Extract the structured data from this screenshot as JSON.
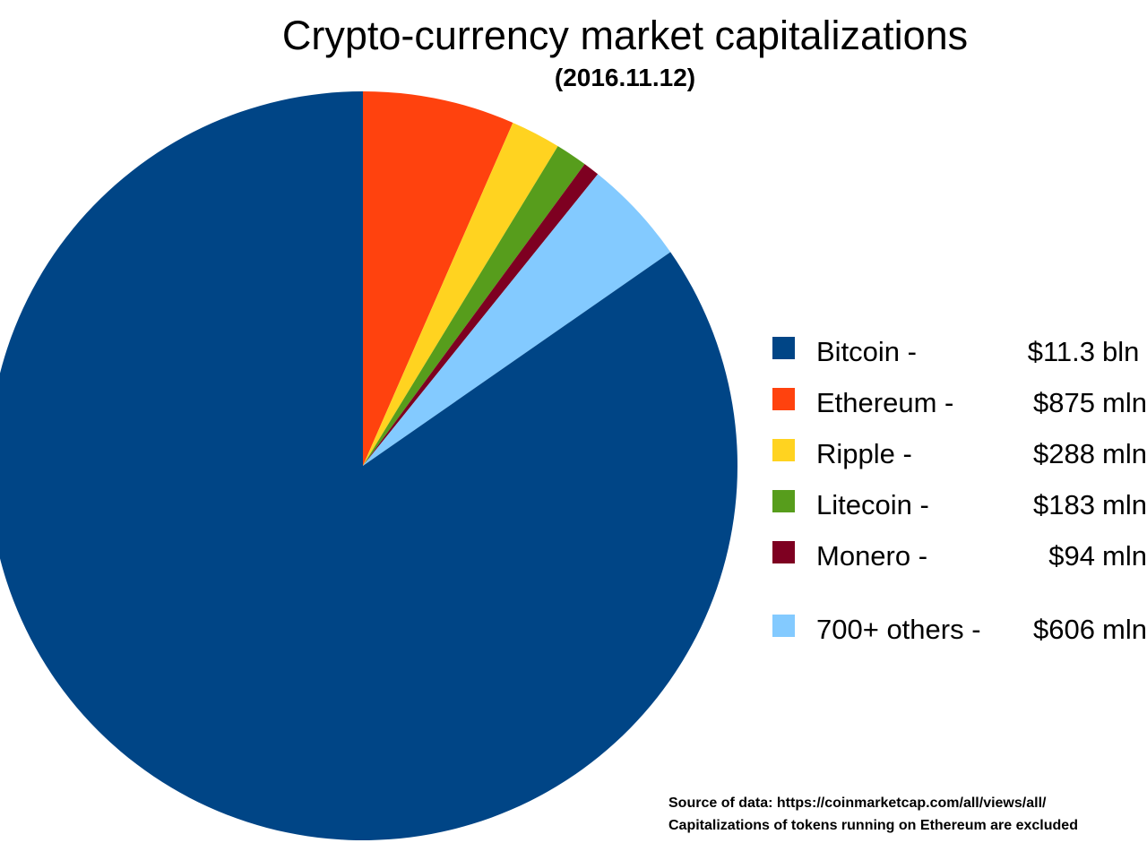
{
  "title": "Crypto-currency market capitalizations",
  "subtitle": "(2016.11.12)",
  "legend": {
    "items": [
      {
        "label": "Bitcoin -",
        "value": "$11.3",
        "unit": "bln",
        "color": "#004586"
      },
      {
        "label": "Ethereum -",
        "value": "$875",
        "unit": "mln",
        "color": "#FF420E"
      },
      {
        "label": "Ripple -",
        "value": "$288",
        "unit": "mln",
        "color": "#FFD320"
      },
      {
        "label": "Litecoin -",
        "value": "$183",
        "unit": "mln",
        "color": "#579D1C"
      },
      {
        "label": "Monero -",
        "value": "$94",
        "unit": "mln",
        "color": "#7E0021"
      },
      {
        "label": "700+ others -",
        "value": "$606",
        "unit": "mln",
        "color": "#83CAFF"
      }
    ]
  },
  "source": {
    "line1": "Source of data: https://coinmarketcap.com/all/views/all/",
    "line2": "Capitalizations of tokens running on Ethereum are excluded"
  },
  "chart_data": {
    "type": "pie",
    "title": "Crypto-currency market capitalizations",
    "subtitle": "(2016.11.12)",
    "slices": [
      {
        "name": "Bitcoin",
        "value_mln": 11300,
        "display": "$11.3 bln",
        "color": "#004586"
      },
      {
        "name": "Ethereum",
        "value_mln": 875,
        "display": "$875 mln",
        "color": "#FF420E"
      },
      {
        "name": "Ripple",
        "value_mln": 288,
        "display": "$288 mln",
        "color": "#FFD320"
      },
      {
        "name": "Litecoin",
        "value_mln": 183,
        "display": "$183 mln",
        "color": "#579D1C"
      },
      {
        "name": "Monero",
        "value_mln": 94,
        "display": "$94 mln",
        "color": "#7E0021"
      },
      {
        "name": "700+ others",
        "value_mln": 606,
        "display": "$606 mln",
        "color": "#83CAFF"
      }
    ],
    "total_mln": 13346,
    "start_angle_deg": 0,
    "direction": "clockwise",
    "draw_order": [
      1,
      2,
      3,
      4,
      5,
      0
    ],
    "legend_position": "right"
  }
}
